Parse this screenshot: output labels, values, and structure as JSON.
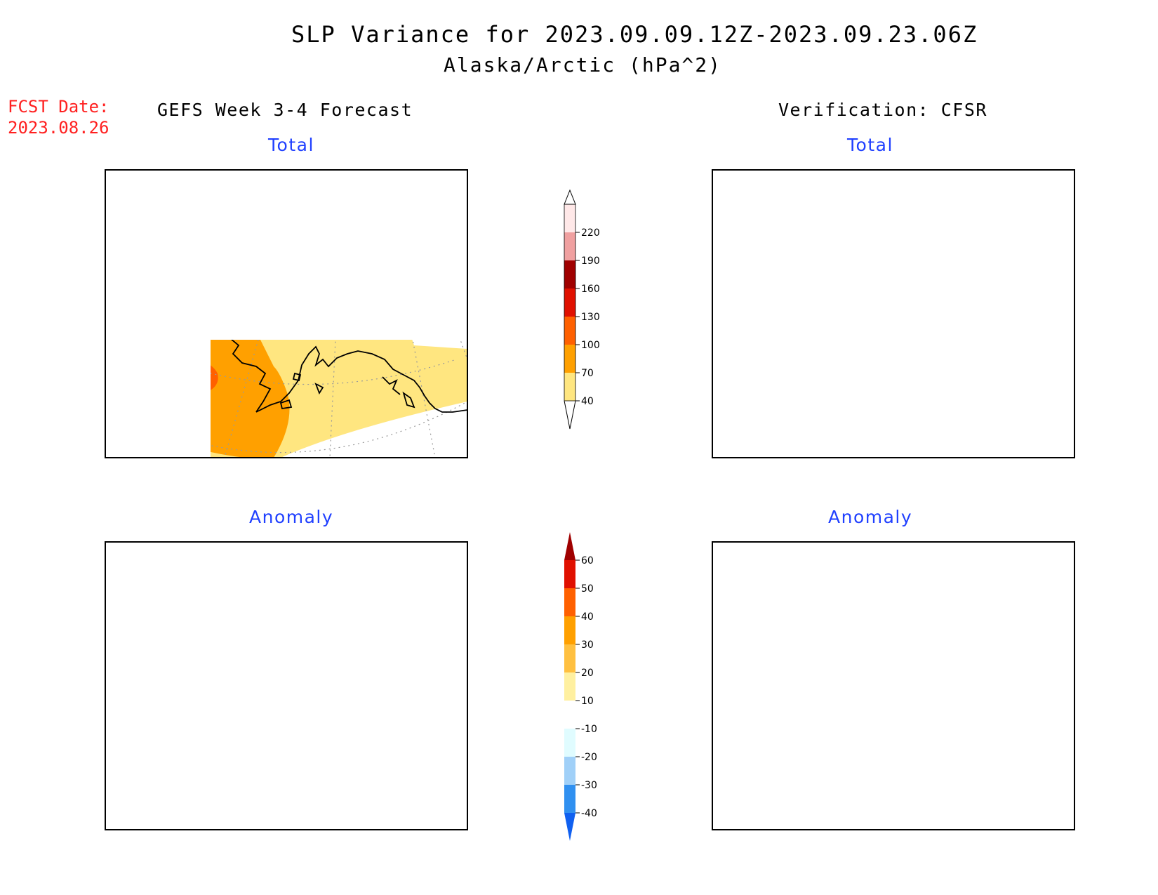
{
  "title": {
    "line1": "SLP Variance for 2023.09.09.12Z-2023.09.23.06Z",
    "line2": "Alaska/Arctic (hPa^2)"
  },
  "fcst_date": {
    "label": "FCST Date:",
    "value": "2023.08.26"
  },
  "columns": {
    "left": "GEFS Week 3-4 Forecast",
    "right": "Verification: CFSR"
  },
  "panels": {
    "top_left": "Total",
    "top_right": "Total",
    "bottom_left": "Anomaly",
    "bottom_right": "Anomaly"
  },
  "colorbars": {
    "total": {
      "labels": [
        "40",
        "70",
        "100",
        "130",
        "160",
        "190",
        "220"
      ],
      "colors": [
        "#ffe680",
        "#ffa000",
        "#ff6000",
        "#e01000",
        "#a00000",
        "#f0a0a0",
        "#ffe8e8"
      ]
    },
    "anomaly": {
      "labels": [
        "-40",
        "-30",
        "-20",
        "-10",
        "10",
        "20",
        "30",
        "40",
        "50",
        "60"
      ],
      "colors": [
        "#1060f0",
        "#3090f0",
        "#a0d0f8",
        "#e0fcff",
        "#ffffff",
        "#fff0a0",
        "#ffc040",
        "#ffa000",
        "#ff6000",
        "#e01000",
        "#a00000"
      ]
    }
  }
}
